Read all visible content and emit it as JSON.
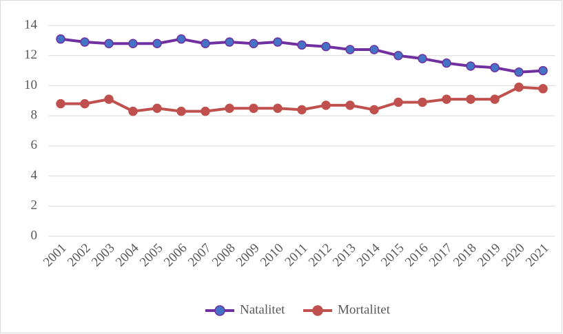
{
  "chart_data": {
    "type": "line",
    "categories": [
      "2001",
      "2002",
      "2003",
      "2004",
      "2005",
      "2006",
      "2007",
      "2008",
      "2009",
      "2010",
      "2011",
      "2012",
      "2013",
      "2014",
      "2015",
      "2016",
      "2017",
      "2018",
      "2019",
      "2020",
      "2021"
    ],
    "series": [
      {
        "name": "Natalitet",
        "color": "#7030a0",
        "marker_color": "#4472c4",
        "values": [
          13.1,
          12.9,
          12.8,
          12.8,
          12.8,
          13.1,
          12.8,
          12.9,
          12.8,
          12.9,
          12.7,
          12.6,
          12.4,
          12.4,
          12.0,
          11.8,
          11.5,
          11.3,
          11.2,
          10.9,
          11.0
        ]
      },
      {
        "name": "Mortalitet",
        "color": "#c0504d",
        "marker_color": "#c0504d",
        "values": [
          8.8,
          8.8,
          9.1,
          8.3,
          8.5,
          8.3,
          8.3,
          8.5,
          8.5,
          8.5,
          8.4,
          8.7,
          8.7,
          8.4,
          8.9,
          8.9,
          9.1,
          9.1,
          9.1,
          9.9,
          9.8
        ]
      }
    ],
    "ylim": [
      0,
      14
    ],
    "yticks": [
      0,
      2,
      4,
      6,
      8,
      10,
      12,
      14
    ],
    "grid": true,
    "legend": "bottom"
  }
}
